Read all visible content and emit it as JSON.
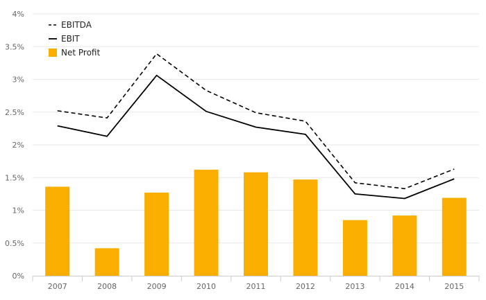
{
  "chart_data": {
    "type": "bar",
    "categories": [
      "2007",
      "2008",
      "2009",
      "2010",
      "2011",
      "2012",
      "2013",
      "2014",
      "2015"
    ],
    "series": [
      {
        "name": "Net Profit",
        "type": "bar",
        "color": "#F9AE00",
        "values": [
          1.36,
          0.42,
          1.27,
          1.62,
          1.58,
          1.47,
          0.85,
          0.92,
          1.19
        ]
      },
      {
        "name": "EBIT",
        "type": "line",
        "style": "solid",
        "color": "#000000",
        "values": [
          2.29,
          2.13,
          3.06,
          2.51,
          2.27,
          2.16,
          1.25,
          1.18,
          1.48
        ]
      },
      {
        "name": "EBITDA",
        "type": "line",
        "style": "dashed",
        "color": "#000000",
        "values": [
          2.52,
          2.41,
          3.39,
          2.83,
          2.49,
          2.36,
          1.42,
          1.33,
          1.63
        ]
      }
    ],
    "y_ticks": [
      "0%",
      "0.5%",
      "1%",
      "1.5%",
      "2%",
      "2.5%",
      "3%",
      "3.5%",
      "4%"
    ],
    "ylim": [
      0,
      4
    ],
    "grid": true,
    "legend": {
      "position": "top-left",
      "entries": [
        {
          "label": "EBITDA",
          "marker": "dashed-line"
        },
        {
          "label": "EBIT",
          "marker": "solid-line"
        },
        {
          "label": "Net Profit",
          "marker": "orange-square"
        }
      ]
    },
    "title": "",
    "xlabel": "",
    "ylabel": ""
  }
}
